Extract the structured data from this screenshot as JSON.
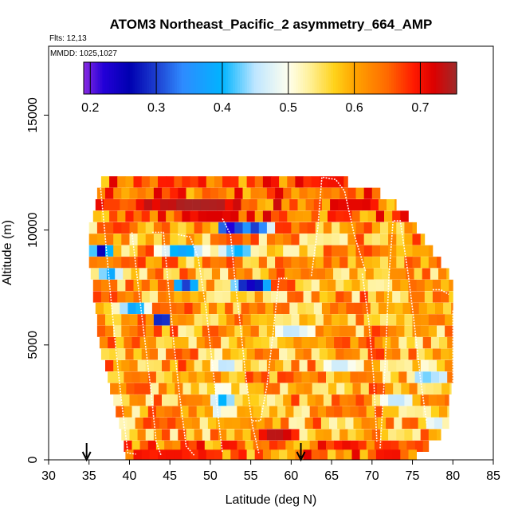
{
  "chart_data": {
    "type": "heatmap",
    "title": "ATOM3 Northeast_Pacific_2 asymmetry_664_AMP",
    "flights_label": "Flts: 12,13",
    "dates_label": "MMDD: 1025,1027",
    "xlabel": "Latitude (deg N)",
    "ylabel": "Altitude (m)",
    "xlim": [
      30,
      85
    ],
    "ylim": [
      0,
      18000
    ],
    "x_ticks": [
      "30",
      "35",
      "40",
      "45",
      "50",
      "55",
      "60",
      "65",
      "70",
      "75",
      "80",
      "85"
    ],
    "y_ticks": [
      "0",
      "5000",
      "10000",
      "15000"
    ],
    "colorbar": {
      "range": [
        0.19,
        0.755
      ],
      "ticks": [
        "0.2",
        "0.3",
        "0.4",
        "0.5",
        "0.6",
        "0.7"
      ],
      "tick_values": [
        0.2,
        0.3,
        0.4,
        0.5,
        0.6,
        0.7
      ]
    },
    "arrow_latitudes": [
      34.7,
      61.2
    ],
    "grid": false,
    "altitude_bands": [
      {
        "alt": 12100,
        "lat_min": 36.5,
        "lat_max": 67.0
      },
      {
        "alt": 11600,
        "lat_min": 36.0,
        "lat_max": 71.0
      },
      {
        "alt": 11100,
        "lat_min": 35.8,
        "lat_max": 73.0
      },
      {
        "alt": 10600,
        "lat_min": 35.5,
        "lat_max": 74.5
      },
      {
        "alt": 10100,
        "lat_min": 35.0,
        "lat_max": 75.5
      },
      {
        "alt": 9600,
        "lat_min": 35.0,
        "lat_max": 76.5
      },
      {
        "alt": 9100,
        "lat_min": 35.0,
        "lat_max": 77.5
      },
      {
        "alt": 8600,
        "lat_min": 35.0,
        "lat_max": 78.5
      },
      {
        "alt": 8100,
        "lat_min": 35.2,
        "lat_max": 79.5
      },
      {
        "alt": 7600,
        "lat_min": 35.5,
        "lat_max": 80.0
      },
      {
        "alt": 7100,
        "lat_min": 35.5,
        "lat_max": 80.0
      },
      {
        "alt": 6600,
        "lat_min": 35.8,
        "lat_max": 80.0
      },
      {
        "alt": 6100,
        "lat_min": 36.0,
        "lat_max": 80.0
      },
      {
        "alt": 5600,
        "lat_min": 36.0,
        "lat_max": 80.0
      },
      {
        "alt": 5100,
        "lat_min": 36.3,
        "lat_max": 80.0
      },
      {
        "alt": 4600,
        "lat_min": 36.5,
        "lat_max": 80.0
      },
      {
        "alt": 4100,
        "lat_min": 37.0,
        "lat_max": 80.0
      },
      {
        "alt": 3600,
        "lat_min": 37.3,
        "lat_max": 80.0
      },
      {
        "alt": 3100,
        "lat_min": 37.6,
        "lat_max": 79.8
      },
      {
        "alt": 2600,
        "lat_min": 38.0,
        "lat_max": 79.5
      },
      {
        "alt": 2100,
        "lat_min": 38.3,
        "lat_max": 79.5
      },
      {
        "alt": 1600,
        "lat_min": 38.7,
        "lat_max": 79.5
      },
      {
        "alt": 1100,
        "lat_min": 39.0,
        "lat_max": 78.5
      },
      {
        "alt": 600,
        "lat_min": 39.3,
        "lat_max": 77.0
      },
      {
        "alt": 200,
        "lat_min": 39.5,
        "lat_max": 75.5
      }
    ],
    "anomalies": [
      {
        "lat": 52.5,
        "alt": 10100,
        "value": 0.22,
        "r_lat": 2.0,
        "r_alt": 500
      },
      {
        "lat": 55.5,
        "alt": 10100,
        "value": 0.3,
        "r_lat": 2.5,
        "r_alt": 500
      },
      {
        "lat": 36.5,
        "alt": 9100,
        "value": 0.25,
        "r_lat": 1.5,
        "r_alt": 450
      },
      {
        "lat": 46.5,
        "alt": 9100,
        "value": 0.38,
        "r_lat": 3.5,
        "r_alt": 500
      },
      {
        "lat": 53.5,
        "alt": 9100,
        "value": 0.4,
        "r_lat": 3.0,
        "r_alt": 500
      },
      {
        "lat": 55.0,
        "alt": 7600,
        "value": 0.24,
        "r_lat": 3.0,
        "r_alt": 400
      },
      {
        "lat": 47.0,
        "alt": 7600,
        "value": 0.3,
        "r_lat": 2.0,
        "r_alt": 400
      },
      {
        "lat": 40.5,
        "alt": 6600,
        "value": 0.38,
        "r_lat": 2.5,
        "r_alt": 450
      },
      {
        "lat": 44.0,
        "alt": 6100,
        "value": 0.25,
        "r_lat": 1.5,
        "r_alt": 400
      },
      {
        "lat": 37.5,
        "alt": 8100,
        "value": 0.38,
        "r_lat": 1.5,
        "r_alt": 400
      },
      {
        "lat": 51.5,
        "alt": 2600,
        "value": 0.4,
        "r_lat": 2.0,
        "r_alt": 700
      },
      {
        "lat": 52.0,
        "alt": 4100,
        "value": 0.45,
        "r_lat": 2.5,
        "r_alt": 600
      },
      {
        "lat": 77.0,
        "alt": 3600,
        "value": 0.43,
        "r_lat": 3.0,
        "r_alt": 600
      },
      {
        "lat": 73.0,
        "alt": 2600,
        "value": 0.45,
        "r_lat": 2.5,
        "r_alt": 500
      },
      {
        "lat": 78.0,
        "alt": 1600,
        "value": 0.47,
        "r_lat": 2.0,
        "r_alt": 600
      },
      {
        "lat": 48.0,
        "alt": 11100,
        "value": 0.75,
        "r_lat": 8.0,
        "r_alt": 350
      },
      {
        "lat": 50.0,
        "alt": 10600,
        "value": 0.72,
        "r_lat": 5.0,
        "r_alt": 350
      },
      {
        "lat": 58.0,
        "alt": 1100,
        "value": 0.74,
        "r_lat": 3.0,
        "r_alt": 450
      },
      {
        "lat": 45.0,
        "alt": 200,
        "value": 0.7,
        "r_lat": 6.0,
        "r_alt": 300
      },
      {
        "lat": 72.0,
        "alt": 200,
        "value": 0.7,
        "r_lat": 3.0,
        "r_alt": 300
      },
      {
        "lat": 65.0,
        "alt": 12100,
        "value": 0.7,
        "r_lat": 3.0,
        "r_alt": 400
      },
      {
        "lat": 60.0,
        "alt": 5600,
        "value": 0.45,
        "r_lat": 3.0,
        "r_alt": 500
      },
      {
        "lat": 66.0,
        "alt": 4100,
        "value": 0.46,
        "r_lat": 3.5,
        "r_alt": 500
      }
    ],
    "flight_tracks": [
      [
        [
          36.3,
          12300
        ],
        [
          36.9,
          10100
        ],
        [
          37.6,
          7400
        ],
        [
          38.3,
          4900
        ],
        [
          39.0,
          2600
        ],
        [
          39.8,
          300
        ],
        [
          40.8,
          250
        ]
      ],
      [
        [
          40.3,
          9900
        ],
        [
          41.0,
          7800
        ],
        [
          41.8,
          5500
        ],
        [
          42.6,
          3200
        ],
        [
          43.3,
          800
        ],
        [
          43.9,
          200
        ]
      ],
      [
        [
          42.8,
          9900
        ],
        [
          44.2,
          9900
        ],
        [
          44.8,
          7600
        ],
        [
          45.5,
          5000
        ],
        [
          46.2,
          2800
        ],
        [
          47.0,
          600
        ],
        [
          48.0,
          200
        ]
      ],
      [
        [
          46.0,
          9800
        ],
        [
          47.5,
          9700
        ],
        [
          48.5,
          8800
        ],
        [
          49.5,
          6500
        ],
        [
          50.3,
          4000
        ],
        [
          51.1,
          1500
        ],
        [
          51.5,
          300
        ]
      ],
      [
        [
          51.5,
          10500
        ],
        [
          52.5,
          9800
        ],
        [
          53.0,
          8000
        ],
        [
          53.7,
          5900
        ],
        [
          54.4,
          3600
        ],
        [
          55.2,
          1500
        ],
        [
          56.0,
          300
        ]
      ],
      [
        [
          55.2,
          1700
        ],
        [
          56.2,
          1700
        ],
        [
          57.0,
          3200
        ],
        [
          57.8,
          5600
        ],
        [
          58.5,
          7900
        ],
        [
          59.5,
          7900
        ]
      ],
      [
        [
          62.5,
          8000
        ],
        [
          63.3,
          10100
        ],
        [
          63.8,
          12300
        ],
        [
          65.5,
          12200
        ],
        [
          66.6,
          11700
        ],
        [
          67.8,
          9800
        ],
        [
          69.2,
          8200
        ]
      ],
      [
        [
          68.8,
          8100
        ],
        [
          69.6,
          6000
        ],
        [
          70.2,
          3600
        ],
        [
          70.6,
          800
        ]
      ],
      [
        [
          71.0,
          500
        ],
        [
          71.6,
          4000
        ],
        [
          72.1,
          8000
        ],
        [
          72.6,
          10400
        ],
        [
          73.5,
          10400
        ],
        [
          74.5,
          8000
        ],
        [
          75.2,
          6000
        ],
        [
          76.0,
          3500
        ],
        [
          76.8,
          1500
        ]
      ],
      [
        [
          77.5,
          7400
        ],
        [
          78.5,
          7400
        ],
        [
          79.5,
          7200
        ]
      ],
      [
        [
          80.0,
          6500
        ],
        [
          80.0,
          2000
        ]
      ]
    ]
  }
}
